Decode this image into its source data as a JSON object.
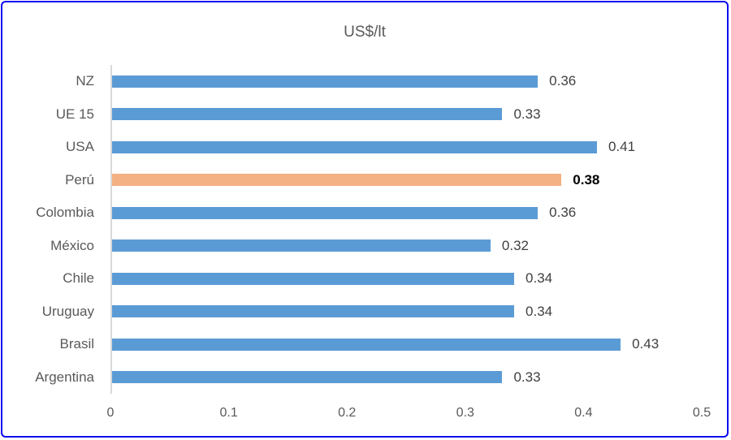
{
  "chart_data": {
    "type": "bar",
    "orientation": "horizontal",
    "title": "US$/lt",
    "categories": [
      "NZ",
      "UE 15",
      "USA",
      "Perú",
      "Colombia",
      "México",
      "Chile",
      "Uruguay",
      "Brasil",
      "Argentina"
    ],
    "values": [
      0.36,
      0.33,
      0.41,
      0.38,
      0.36,
      0.32,
      0.34,
      0.34,
      0.43,
      0.33
    ],
    "data_labels": [
      "0.36",
      "0.33",
      "0.41",
      "0.38",
      "0.36",
      "0.32",
      "0.34",
      "0.34",
      "0.43",
      "0.33"
    ],
    "highlight_index": 3,
    "highlight_category": "Perú",
    "xlim": [
      0,
      0.5
    ],
    "x_ticks": [
      "0",
      "0.1",
      "0.2",
      "0.3",
      "0.4",
      "0.5"
    ],
    "grid": "off",
    "legend": "none",
    "colors": {
      "bar": "#5B9BD5",
      "highlight_bar": "#F4B183",
      "frame_border": "#0909F2",
      "axis_line": "#D9D9D9",
      "axis_text": "#595959",
      "data_label_text": "#404040",
      "highlight_label_text": "#000000"
    }
  }
}
